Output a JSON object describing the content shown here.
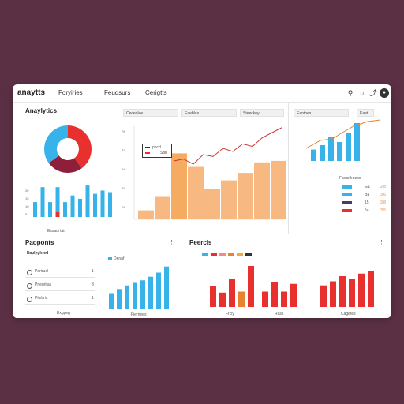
{
  "app": {
    "brand": "anaytts",
    "nav": [
      "Foryiries",
      "Feudsurs",
      "Cerigtts"
    ]
  },
  "analytics": {
    "title": "Anaylytics",
    "menu": "⋮",
    "donut": [
      {
        "label": "a",
        "value": 40,
        "color": "#e8302e"
      },
      {
        "label": "b",
        "value": 25,
        "color": "#8e1f3a"
      },
      {
        "label": "c",
        "value": 35,
        "color": "#38b3ea"
      }
    ],
    "mini_bars": [
      9,
      18,
      9,
      18,
      9,
      13,
      11,
      19,
      14,
      16,
      15
    ],
    "mini_bar_red_index": 3,
    "mini_axis_labels": [
      "20",
      "15",
      "10",
      "5"
    ],
    "caption": "Essaci tatt"
  },
  "center": {
    "headers": [
      "Ceceoloe",
      "Eaeblas",
      "Steeckey"
    ],
    "legend": [
      {
        "label": "pncd",
        "color": "#333333"
      },
      {
        "label": "Sbb",
        "color": "#e8302e"
      }
    ],
    "y_labels": [
      "Rf",
      "$2",
      "Ak",
      "Tk",
      "Sk"
    ]
  },
  "right_top": {
    "headers": [
      "Eantoes",
      "Eaet"
    ],
    "series_color": "#38b3ea",
    "line_color": "#e8822e"
  },
  "legend_right": {
    "title": "Faecnk rzpe",
    "rows": [
      {
        "label": "E&",
        "value": "2.8",
        "color": "#38b3ea"
      },
      {
        "label": "Ba",
        "value": "3.6",
        "color": "#38b3ea"
      },
      {
        "label": "15",
        "value": "3.8",
        "color": "#4b3a6a"
      },
      {
        "label": "5a",
        "value": "3.5",
        "color": "#e8302e"
      }
    ]
  },
  "products": {
    "title": "Paoponts",
    "menu": "⋮",
    "subtitle": "Eaplyghred",
    "items": [
      {
        "label": "Pariruol",
        "count": "1"
      },
      {
        "label": "Pneuritas",
        "count": "3"
      },
      {
        "label": "Pilebris",
        "count": "1"
      }
    ],
    "footer": "Exgpeg",
    "chart_legend": "Denaf",
    "chart_caption": "Fiernees"
  },
  "reports": {
    "title": "Peercls",
    "menu": "⋮",
    "swatches": [
      "#38b3ea",
      "#e8302e",
      "#f08a8a",
      "#e8822e",
      "#f4a93a",
      "#333333"
    ],
    "captions": [
      "Frcly",
      "Rass",
      "Cagetes"
    ]
  },
  "chart_data": [
    {
      "type": "line",
      "title": "",
      "series": [
        {
          "values": [
            35,
            38,
            30,
            45,
            42,
            55,
            50,
            62,
            58,
            72,
            80,
            88
          ]
        }
      ]
    },
    {
      "type": "bar",
      "categories": [
        "1",
        "2",
        "3",
        "4",
        "5",
        "6",
        "7",
        "8",
        "9",
        "10"
      ],
      "values": [
        12,
        30,
        88,
        70,
        40,
        52,
        62,
        76,
        78,
        75
      ]
    },
    {
      "type": "bar",
      "values": [
        18,
        25,
        38,
        30,
        45,
        60
      ]
    },
    {
      "type": "bar",
      "values": [
        30,
        38,
        45,
        50,
        55,
        62,
        70,
        82
      ]
    },
    {
      "type": "bar",
      "series": [
        {
          "values": [
            40,
            28,
            55,
            30,
            80
          ]
        },
        {
          "values": [
            30,
            48,
            30,
            45
          ]
        },
        {
          "values": [
            42,
            50,
            60,
            55,
            65,
            70
          ]
        }
      ]
    }
  ]
}
